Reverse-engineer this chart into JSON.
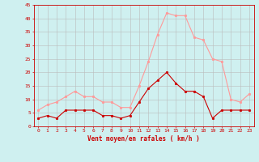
{
  "hours": [
    0,
    1,
    2,
    3,
    4,
    5,
    6,
    7,
    8,
    9,
    10,
    11,
    12,
    13,
    14,
    15,
    16,
    17,
    18,
    19,
    20,
    21,
    22,
    23
  ],
  "wind_avg": [
    3,
    4,
    3,
    6,
    6,
    6,
    6,
    4,
    4,
    3,
    4,
    9,
    14,
    17,
    20,
    16,
    13,
    13,
    11,
    3,
    6,
    6,
    6,
    6
  ],
  "wind_gust": [
    6,
    8,
    9,
    11,
    13,
    11,
    11,
    9,
    9,
    7,
    7,
    15,
    24,
    34,
    42,
    41,
    41,
    33,
    32,
    25,
    24,
    10,
    9,
    12
  ],
  "bg_color": "#cff0f0",
  "grid_color": "#bbbbbb",
  "line_avg_color": "#cc0000",
  "line_gust_color": "#ff9999",
  "xlabel": "Vent moyen/en rafales ( km/h )",
  "xlabel_color": "#cc0000",
  "tick_color": "#cc0000",
  "ylim": [
    0,
    45
  ],
  "yticks": [
    0,
    5,
    10,
    15,
    20,
    25,
    30,
    35,
    40,
    45
  ],
  "xlim": [
    -0.5,
    23.5
  ]
}
